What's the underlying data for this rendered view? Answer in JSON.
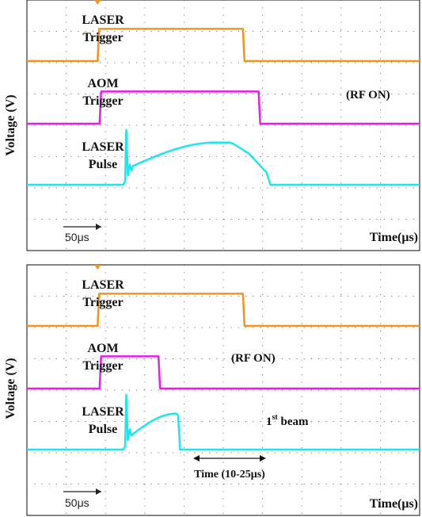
{
  "y_axis_label": "Voltage (V)",
  "x_axis_label": "Time(μs)",
  "colors": {
    "laser_trigger": "#f0961e",
    "aom_trigger": "#e61ee6",
    "laser_pulse": "#1ee6f0",
    "grid": "#777777",
    "text": "#111111"
  },
  "chart_data": [
    {
      "type": "line",
      "panel": "top",
      "xlabel": "Time(μs)",
      "ylabel": "Voltage (V)",
      "grid": true,
      "scale_bar": "50μs",
      "signals": [
        {
          "label_lines": [
            "LASER",
            "Trigger"
          ],
          "kind": "laser_trigger",
          "rise_div": 1.8,
          "fall_div": 5.5
        },
        {
          "label_lines": [
            "AOM",
            "Trigger"
          ],
          "annotation": "(RF ON)",
          "kind": "aom_trigger",
          "rise_div": 1.85,
          "fall_div": 5.9
        },
        {
          "label_lines": [
            "LASER",
            "Pulse"
          ],
          "kind": "laser_pulse",
          "start_div": 2.5,
          "end_div": 5.65
        }
      ]
    },
    {
      "type": "line",
      "panel": "bottom",
      "xlabel": "Time(μs)",
      "ylabel": "Voltage (V)",
      "grid": true,
      "scale_bar": "50μs",
      "signals": [
        {
          "label_lines": [
            "LASER",
            "Trigger"
          ],
          "kind": "laser_trigger",
          "rise_div": 1.8,
          "fall_div": 5.5
        },
        {
          "label_lines": [
            "AOM",
            "Trigger"
          ],
          "annotation": "(RF ON)",
          "kind": "aom_trigger",
          "rise_div": 1.85,
          "fall_div": 3.35
        },
        {
          "label_lines": [
            "LASER",
            "Pulse"
          ],
          "annotation_main": "1",
          "annotation_sup": "st",
          "annotation_rest": " beam",
          "kind": "laser_pulse",
          "start_div": 2.5,
          "end_div": 3.8
        }
      ],
      "time_arrow_label": "Time (10-25μs)"
    }
  ]
}
